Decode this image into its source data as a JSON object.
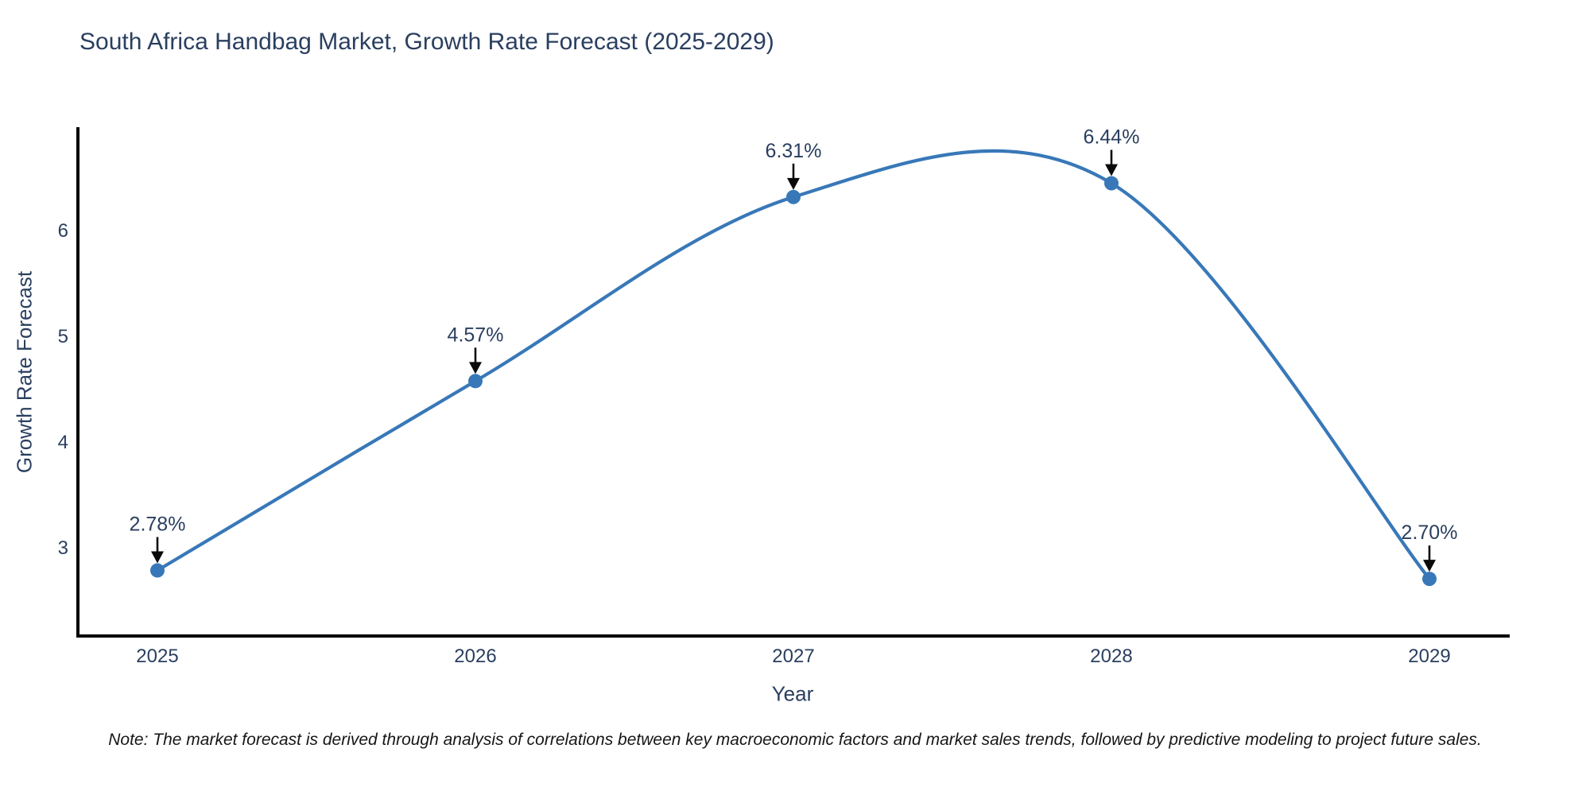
{
  "chart_data": {
    "type": "line",
    "title": "South Africa Handbag Market, Growth Rate Forecast (2025-2029)",
    "xlabel": "Year",
    "ylabel": "Growth Rate Forecast",
    "categories": [
      2025,
      2026,
      2027,
      2028,
      2029
    ],
    "values": [
      2.78,
      4.57,
      6.31,
      6.44,
      2.7
    ],
    "point_labels": [
      "2.78%",
      "4.57%",
      "6.31%",
      "6.44%",
      "2.70%"
    ],
    "yticks": [
      3,
      4,
      5,
      6
    ],
    "x_range": [
      2024.75,
      2029.25
    ],
    "y_range": [
      2.16,
      6.97
    ],
    "line_shape": "spline",
    "grid": false,
    "legend_position": "none",
    "colors": {
      "line": "#3878b8",
      "marker": "#3878b8",
      "axis_line": "#010101",
      "text": "#2a3f5f",
      "annotation_arrow": "#0a0a0a",
      "background": "#ffffff"
    },
    "note": "Note: The market forecast is derived through analysis of correlations between key macroeconomic factors and market sales trends, followed by predictive modeling to project future sales."
  }
}
